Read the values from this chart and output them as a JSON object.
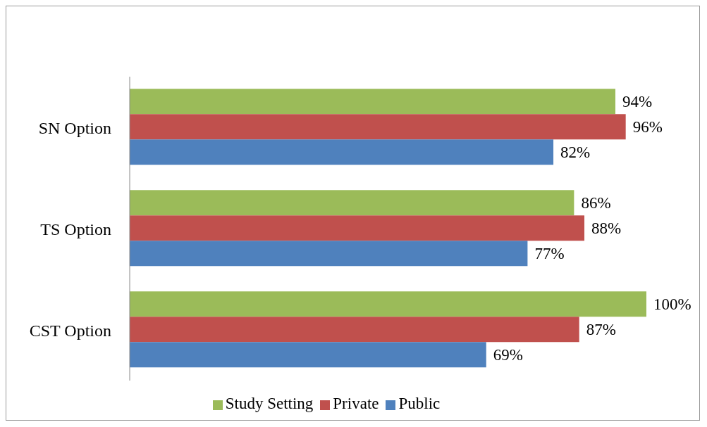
{
  "chart_data": {
    "type": "bar",
    "orientation": "horizontal",
    "categories": [
      "SN Option",
      "TS Option",
      "CST Option"
    ],
    "series": [
      {
        "name": "Study Setting",
        "color": "#9bbb59",
        "values": [
          94,
          86,
          100
        ],
        "value_labels": [
          "94%",
          "86%",
          "100%"
        ]
      },
      {
        "name": "Private",
        "color": "#c0504d",
        "values": [
          96,
          88,
          87
        ],
        "value_labels": [
          "96%",
          "88%",
          "87%"
        ]
      },
      {
        "name": "Public",
        "color": "#4f81bd",
        "values": [
          82,
          77,
          69
        ],
        "value_labels": [
          "82%",
          "77%",
          "69%"
        ]
      }
    ],
    "xlim": [
      0,
      100
    ],
    "tick_labels": "y",
    "legend": "bottom"
  }
}
